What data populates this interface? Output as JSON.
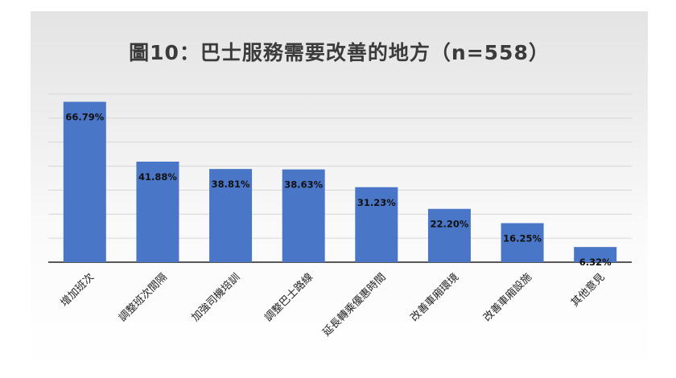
{
  "chart_data": {
    "type": "bar",
    "title": "圖10：巴士服務需要改善的地方（n=558）",
    "categories": [
      "增加班次",
      "調整班次間隔",
      "加強司機培訓",
      "調整巴士路線",
      "延長轉乘優惠時間",
      "改善車廂環境",
      "改善車廂設施",
      "其他意見"
    ],
    "values": [
      66.79,
      41.88,
      38.81,
      38.63,
      31.23,
      22.2,
      16.25,
      6.32
    ],
    "value_labels": [
      "66.79%",
      "41.88%",
      "38.81%",
      "38.63%",
      "31.23%",
      "22.20%",
      "16.25%",
      "6.32%"
    ],
    "unit": "%",
    "ylim": [
      0,
      70
    ],
    "grid": true,
    "bar_color": "#4a76c7",
    "xlabel": "",
    "ylabel": ""
  }
}
